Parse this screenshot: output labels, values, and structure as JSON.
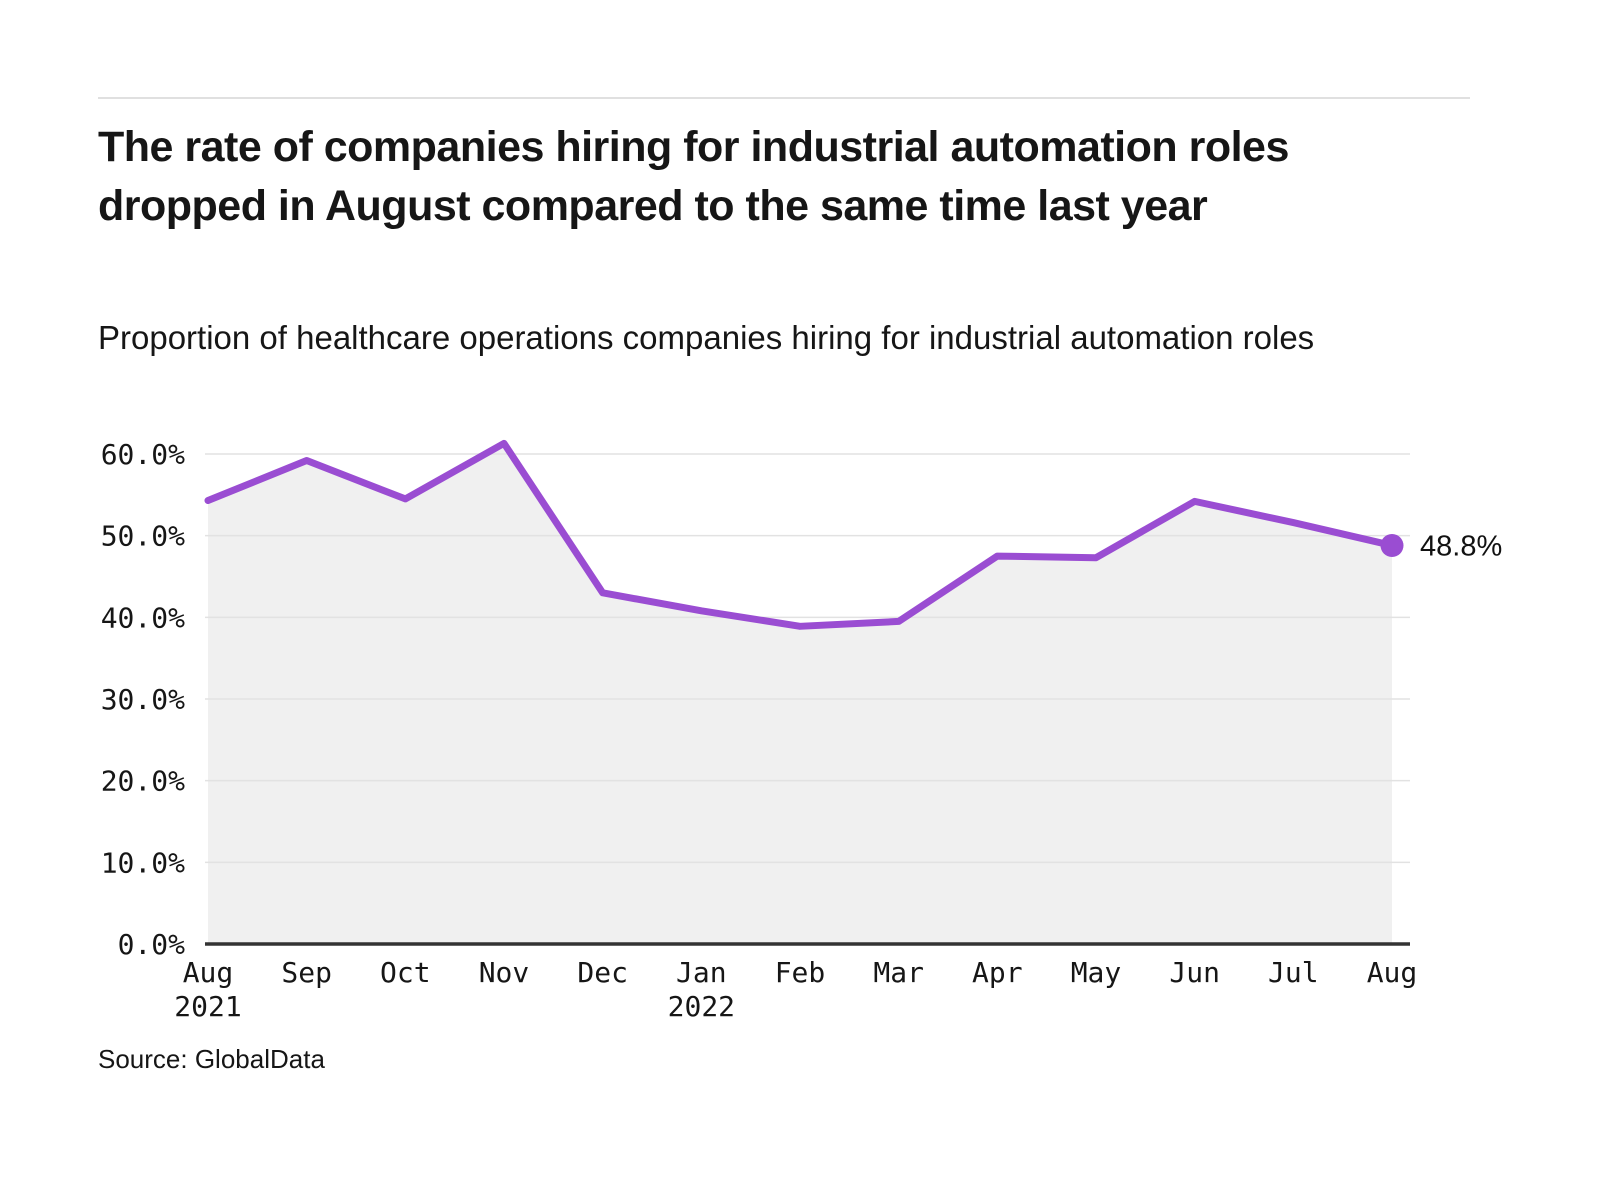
{
  "chart_data": {
    "type": "line",
    "area_fill": true,
    "title": "The rate of companies hiring for industrial automation roles dropped in August compared to the same time last year",
    "subtitle": "Proportion of healthcare operations companies hiring for industrial automation roles",
    "source": "Source: GlobalData",
    "x": [
      "Aug",
      "Sep",
      "Oct",
      "Nov",
      "Dec",
      "Jan",
      "Feb",
      "Mar",
      "Apr",
      "May",
      "Jun",
      "Jul",
      "Aug"
    ],
    "x_years": [
      {
        "index": 0,
        "label": "2021"
      },
      {
        "index": 5,
        "label": "2022"
      }
    ],
    "series": [
      {
        "name": "Proportion of healthcare operations companies hiring for industrial automation roles",
        "values": [
          54.3,
          59.2,
          54.5,
          61.3,
          43.0,
          40.8,
          38.9,
          39.5,
          47.5,
          47.3,
          54.2,
          51.6,
          48.8
        ]
      }
    ],
    "end_label": "48.8%",
    "ylim": [
      0,
      60
    ],
    "ytick_step": 10,
    "yticks": [
      "0.0%",
      "10.0%",
      "20.0%",
      "30.0%",
      "40.0%",
      "50.0%",
      "60.0%"
    ],
    "xlabel": "",
    "ylabel": "",
    "grid": true,
    "legend": "none",
    "colors": {
      "line": "#9a4dd2",
      "marker": "#9a4dd2",
      "area": "#f0f0f0",
      "gridline": "#e2e2e2",
      "axis": "#333333",
      "text": "#161616"
    }
  }
}
